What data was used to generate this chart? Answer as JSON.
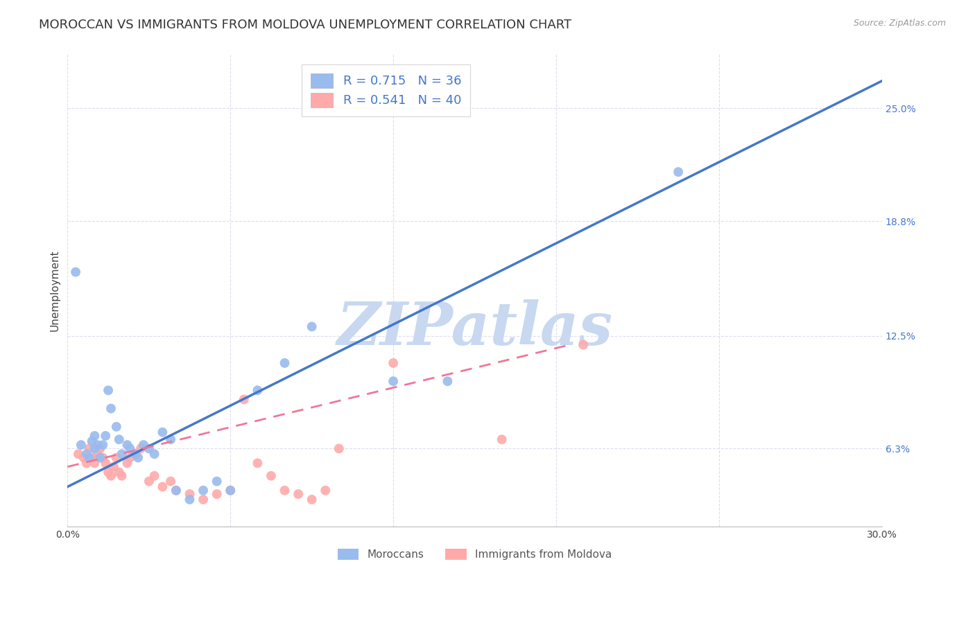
{
  "title": "MOROCCAN VS IMMIGRANTS FROM MOLDOVA UNEMPLOYMENT CORRELATION CHART",
  "source": "Source: ZipAtlas.com",
  "ylabel": "Unemployment",
  "xlim": [
    0.0,
    0.3
  ],
  "ylim": [
    0.02,
    0.28
  ],
  "ytick_labels": [
    "6.3%",
    "12.5%",
    "18.8%",
    "25.0%"
  ],
  "ytick_values": [
    0.063,
    0.125,
    0.188,
    0.25
  ],
  "xtick_values": [
    0.0,
    0.06,
    0.12,
    0.18,
    0.24,
    0.3
  ],
  "xtick_labels": [
    "0.0%",
    "",
    "",
    "",
    "",
    "30.0%"
  ],
  "legend_label1_r": "0.715",
  "legend_label1_n": "36",
  "legend_label2_r": "0.541",
  "legend_label2_n": "40",
  "legend_label_bottom1": "Moroccans",
  "legend_label_bottom2": "Immigrants from Moldova",
  "blue_color": "#99BBEE",
  "pink_color": "#FFAAAA",
  "blue_line_color": "#4477CC",
  "pink_line_color": "#EE7799",
  "watermark": "ZIPatlas",
  "watermark_color": "#C8D8F0",
  "blue_scatter_x": [
    0.005,
    0.007,
    0.008,
    0.009,
    0.01,
    0.01,
    0.011,
    0.012,
    0.013,
    0.014,
    0.015,
    0.016,
    0.018,
    0.019,
    0.02,
    0.022,
    0.023,
    0.025,
    0.026,
    0.028,
    0.03,
    0.032,
    0.035,
    0.038,
    0.04,
    0.045,
    0.05,
    0.055,
    0.06,
    0.07,
    0.08,
    0.09,
    0.12,
    0.14,
    0.225,
    0.003
  ],
  "blue_scatter_y": [
    0.065,
    0.06,
    0.058,
    0.067,
    0.07,
    0.063,
    0.065,
    0.058,
    0.065,
    0.07,
    0.095,
    0.085,
    0.075,
    0.068,
    0.06,
    0.065,
    0.063,
    0.06,
    0.058,
    0.065,
    0.063,
    0.06,
    0.072,
    0.068,
    0.04,
    0.035,
    0.04,
    0.045,
    0.04,
    0.095,
    0.11,
    0.13,
    0.1,
    0.1,
    0.215,
    0.16
  ],
  "pink_scatter_x": [
    0.004,
    0.006,
    0.007,
    0.008,
    0.009,
    0.01,
    0.011,
    0.012,
    0.013,
    0.014,
    0.015,
    0.016,
    0.017,
    0.018,
    0.019,
    0.02,
    0.022,
    0.023,
    0.025,
    0.027,
    0.03,
    0.032,
    0.035,
    0.038,
    0.04,
    0.045,
    0.05,
    0.055,
    0.06,
    0.065,
    0.07,
    0.075,
    0.08,
    0.085,
    0.09,
    0.095,
    0.1,
    0.12,
    0.16,
    0.19
  ],
  "pink_scatter_y": [
    0.06,
    0.058,
    0.055,
    0.063,
    0.058,
    0.055,
    0.06,
    0.063,
    0.058,
    0.055,
    0.05,
    0.048,
    0.053,
    0.058,
    0.05,
    0.048,
    0.055,
    0.058,
    0.06,
    0.063,
    0.045,
    0.048,
    0.042,
    0.045,
    0.04,
    0.038,
    0.035,
    0.038,
    0.04,
    0.09,
    0.055,
    0.048,
    0.04,
    0.038,
    0.035,
    0.04,
    0.063,
    0.11,
    0.068,
    0.12
  ],
  "blue_line_x0": 0.0,
  "blue_line_x1": 0.3,
  "blue_line_y0": 0.042,
  "blue_line_y1": 0.265,
  "pink_line_x0": 0.0,
  "pink_line_x1": 0.185,
  "pink_line_y0": 0.053,
  "pink_line_y1": 0.12,
  "background_color": "#FFFFFF",
  "grid_color": "#DDDDEE",
  "title_fontsize": 13,
  "axis_label_fontsize": 11,
  "tick_fontsize": 10,
  "scatter_size": 100
}
